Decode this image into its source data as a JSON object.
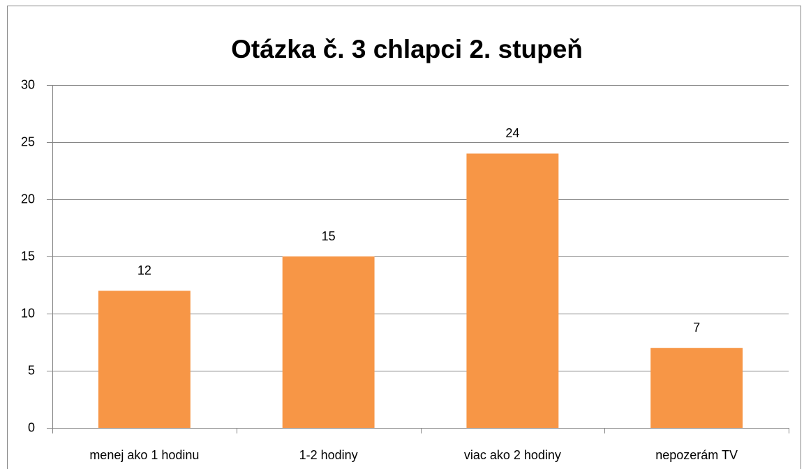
{
  "chart_data": {
    "type": "bar",
    "title": "Otázka č. 3 chlapci 2. stupeň",
    "categories": [
      "menej ako 1 hodinu",
      "1-2 hodiny",
      "viac ako 2 hodiny",
      "nepozerám TV"
    ],
    "values": [
      12,
      15,
      24,
      7
    ],
    "color": "#f79646",
    "ylim": [
      0,
      30
    ],
    "yticks": [
      0,
      5,
      10,
      15,
      20,
      25,
      30
    ],
    "grid": true
  }
}
